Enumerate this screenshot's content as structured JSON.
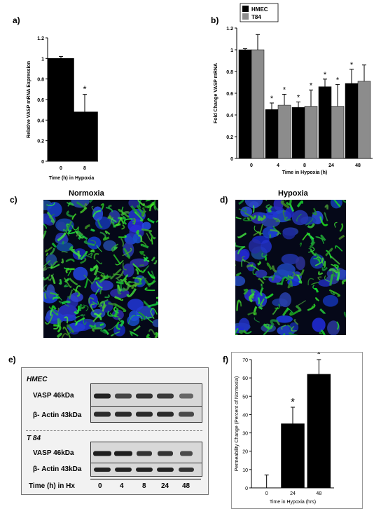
{
  "panels": {
    "a": "a)",
    "b": "b)",
    "c": "c)",
    "d": "d)",
    "e": "e)",
    "f": "f)"
  },
  "images": {
    "normoxia_title": "Normoxia",
    "hypoxia_title": "Hypoxia"
  },
  "western": {
    "group1": "HMEC",
    "group2": "T 84",
    "vasp": "VASP 46kDa",
    "actin": "β- Actin 43kDa",
    "time_label": "Time (h) in Hx",
    "times": [
      "0",
      "4",
      "8",
      "24",
      "48"
    ]
  },
  "chart_data": [
    {
      "id": "a",
      "type": "bar",
      "categories": [
        "0",
        "8"
      ],
      "values": [
        1.0,
        0.48
      ],
      "errors": [
        0.02,
        0.17
      ],
      "significance": [
        "",
        "*"
      ],
      "ylabel": "Relative VASP mRNA Expression",
      "xlabel": "Time (h) in Hypoxia",
      "ylim": [
        0,
        1.2
      ],
      "yticks": [
        "0",
        "0.2",
        "0.4",
        "0.6",
        "0.8",
        "1",
        "1.2"
      ],
      "colors": [
        "#000000"
      ]
    },
    {
      "id": "b",
      "type": "bar",
      "categories": [
        "0",
        "4",
        "8",
        "24",
        "48"
      ],
      "series": [
        {
          "name": "HMEC",
          "color": "#000000",
          "values": [
            1.0,
            0.45,
            0.47,
            0.66,
            0.69
          ],
          "errors": [
            0.01,
            0.06,
            0.05,
            0.07,
            0.13
          ],
          "significance": [
            "",
            "*",
            "*",
            "*",
            "*"
          ]
        },
        {
          "name": "T84",
          "color": "#8c8c8c",
          "values": [
            1.0,
            0.49,
            0.48,
            0.48,
            0.71
          ],
          "errors": [
            0.14,
            0.1,
            0.15,
            0.2,
            0.15
          ],
          "significance": [
            "",
            "*",
            "*",
            "*",
            ""
          ]
        }
      ],
      "ylabel": "Fold Change VASP mRNA",
      "xlabel": "Time in Hypoxia (h)",
      "ylim": [
        0,
        1.2
      ],
      "yticks": [
        "0",
        "0.2",
        "0.4",
        "0.6",
        "0.8",
        "1",
        "1.2"
      ],
      "legend": "top-left"
    },
    {
      "id": "f",
      "type": "bar",
      "categories": [
        "0",
        "24",
        "48"
      ],
      "values": [
        0,
        35,
        62
      ],
      "errors": [
        7,
        9,
        8
      ],
      "significance": [
        "",
        "*",
        "*"
      ],
      "ylabel": "Permeability Change (Percent of Normoxia)",
      "xlabel": "Time in Hypoxia (hrs)",
      "ylim": [
        0,
        70
      ],
      "yticks": [
        "0",
        "10",
        "20",
        "30",
        "40",
        "50",
        "60",
        "70"
      ],
      "colors": [
        "#000000"
      ]
    }
  ]
}
